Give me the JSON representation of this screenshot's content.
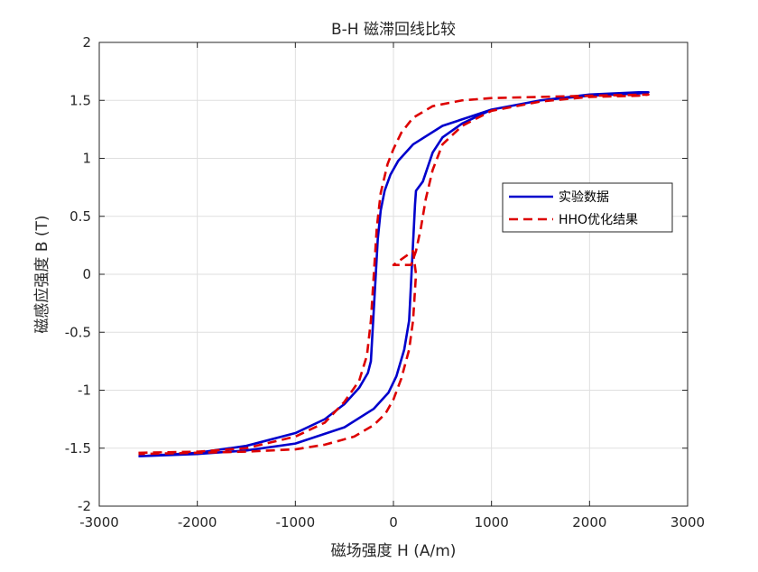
{
  "chart_data": {
    "type": "line",
    "title": "B-H 磁滞回线比较",
    "xlabel": "磁场强度 H (A/m)",
    "ylabel": "磁感应强度 B (T)",
    "xlim": [
      -3000,
      3000
    ],
    "ylim": [
      -2,
      2
    ],
    "xticks": [
      -3000,
      -2000,
      -1000,
      0,
      1000,
      2000,
      3000
    ],
    "xtick_labels": [
      "-3000",
      "-2000",
      "-1000",
      "0",
      "1000",
      "2000",
      "3000"
    ],
    "yticks": [
      -2,
      -1.5,
      -1,
      -0.5,
      0,
      0.5,
      1,
      1.5,
      2
    ],
    "ytick_labels": [
      "-2",
      "-1.5",
      "-1",
      "-0.5",
      "0",
      "0.5",
      "1",
      "1.5",
      "2"
    ],
    "grid": true,
    "legend_position": "right",
    "series": [
      {
        "name": "实验数据",
        "color": "#0000CC",
        "style": "solid",
        "points": [
          [
            -2600,
            -1.57
          ],
          [
            -2000,
            -1.54
          ],
          [
            -1500,
            -1.48
          ],
          [
            -1000,
            -1.37
          ],
          [
            -700,
            -1.25
          ],
          [
            -500,
            -1.12
          ],
          [
            -350,
            -0.98
          ],
          [
            -260,
            -0.85
          ],
          [
            -230,
            -0.75
          ],
          [
            -200,
            -0.3
          ],
          [
            -180,
            0.0
          ],
          [
            -160,
            0.3
          ],
          [
            -130,
            0.55
          ],
          [
            -90,
            0.72
          ],
          [
            -30,
            0.86
          ],
          [
            50,
            0.98
          ],
          [
            200,
            1.12
          ],
          [
            500,
            1.28
          ],
          [
            1000,
            1.42
          ],
          [
            1500,
            1.5
          ],
          [
            2000,
            1.55
          ],
          [
            2500,
            1.57
          ],
          [
            2600,
            1.57
          ],
          [
            2500,
            1.56
          ],
          [
            2000,
            1.54
          ],
          [
            1500,
            1.5
          ],
          [
            1000,
            1.42
          ],
          [
            700,
            1.3
          ],
          [
            500,
            1.18
          ],
          [
            400,
            1.05
          ],
          [
            300,
            0.8
          ],
          [
            230,
            0.72
          ],
          [
            220,
            0.6
          ],
          [
            190,
            0.1
          ],
          [
            160,
            -0.4
          ],
          [
            110,
            -0.65
          ],
          [
            30,
            -0.88
          ],
          [
            -50,
            -1.02
          ],
          [
            -200,
            -1.16
          ],
          [
            -500,
            -1.32
          ],
          [
            -1000,
            -1.46
          ],
          [
            -1500,
            -1.52
          ],
          [
            -2000,
            -1.55
          ],
          [
            -2600,
            -1.57
          ]
        ]
      },
      {
        "name": "HHO优化结果",
        "color": "#DD0000",
        "style": "dashed",
        "points": [
          [
            -2600,
            -1.54
          ],
          [
            -2000,
            -1.53
          ],
          [
            -1500,
            -1.5
          ],
          [
            -1000,
            -1.4
          ],
          [
            -700,
            -1.28
          ],
          [
            -500,
            -1.1
          ],
          [
            -350,
            -0.92
          ],
          [
            -270,
            -0.7
          ],
          [
            -230,
            -0.4
          ],
          [
            -200,
            0.0
          ],
          [
            -170,
            0.4
          ],
          [
            -130,
            0.7
          ],
          [
            -60,
            0.95
          ],
          [
            0,
            1.08
          ],
          [
            80,
            1.22
          ],
          [
            200,
            1.35
          ],
          [
            400,
            1.45
          ],
          [
            700,
            1.5
          ],
          [
            1000,
            1.52
          ],
          [
            1500,
            1.53
          ],
          [
            2000,
            1.54
          ],
          [
            2600,
            1.55
          ],
          [
            2500,
            1.54
          ],
          [
            2000,
            1.53
          ],
          [
            1500,
            1.49
          ],
          [
            1000,
            1.41
          ],
          [
            700,
            1.28
          ],
          [
            500,
            1.12
          ],
          [
            400,
            0.9
          ],
          [
            330,
            0.65
          ],
          [
            280,
            0.4
          ],
          [
            230,
            0.2
          ],
          [
            180,
            0.08
          ],
          [
            0,
            0.08
          ],
          [
            200,
            0.2
          ],
          [
            230,
            0.0
          ],
          [
            200,
            -0.4
          ],
          [
            160,
            -0.65
          ],
          [
            80,
            -0.9
          ],
          [
            0,
            -1.08
          ],
          [
            -80,
            -1.2
          ],
          [
            -200,
            -1.3
          ],
          [
            -400,
            -1.4
          ],
          [
            -700,
            -1.47
          ],
          [
            -1000,
            -1.51
          ],
          [
            -1500,
            -1.53
          ],
          [
            -2000,
            -1.54
          ],
          [
            -2600,
            -1.55
          ]
        ]
      }
    ]
  }
}
